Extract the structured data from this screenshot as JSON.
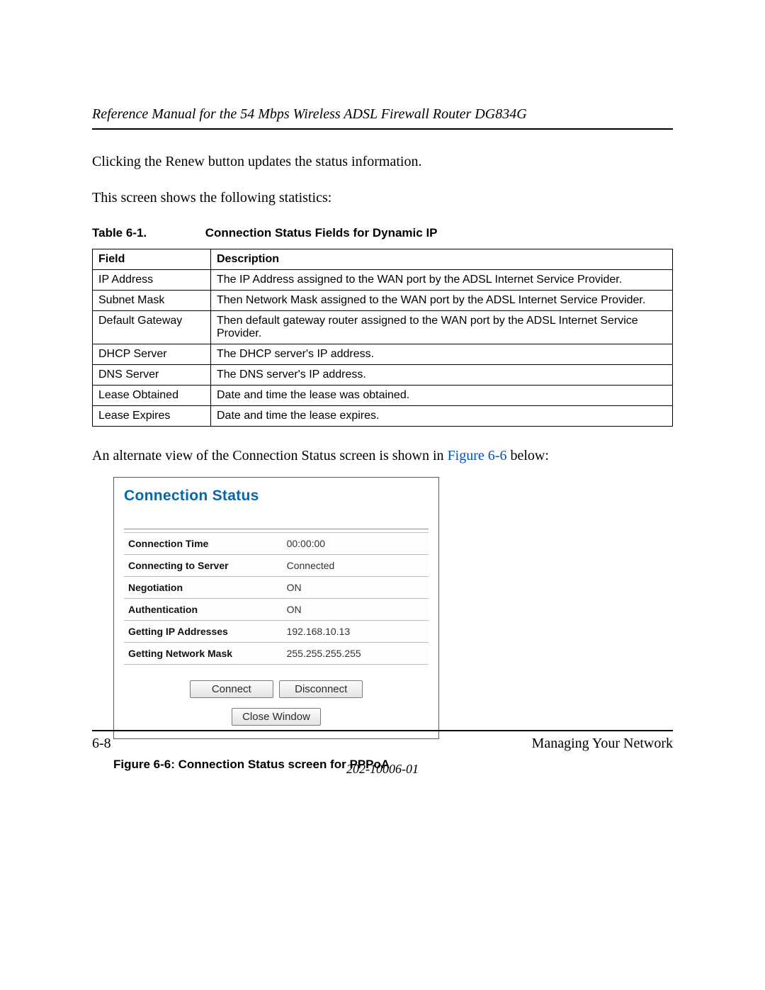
{
  "header": {
    "title": "Reference Manual for the 54 Mbps Wireless ADSL Firewall Router DG834G"
  },
  "body": {
    "para1": "Clicking the Renew button updates the status information.",
    "para2": "This screen shows the following statistics:",
    "para3_pre": "An alternate view of the Connection Status screen is shown in ",
    "para3_link": "Figure 6-6",
    "para3_post": " below:"
  },
  "table1": {
    "caption_label": "Table 6-1.",
    "caption_text": "Connection Status Fields for Dynamic IP",
    "columns": [
      "Field",
      "Description"
    ],
    "rows": [
      [
        "IP Address",
        "The IP Address assigned to the WAN port by the ADSL Internet Service Provider."
      ],
      [
        "Subnet Mask",
        "Then Network Mask assigned to the WAN port by the ADSL Internet Service Provider."
      ],
      [
        "Default Gateway",
        "Then default gateway router assigned to the WAN port by the ADSL Internet Service Provider."
      ],
      [
        "DHCP Server",
        "The DHCP server's IP address."
      ],
      [
        "DNS Server",
        "The DNS server's IP address."
      ],
      [
        "Lease Obtained",
        "Date and time the lease was obtained."
      ],
      [
        "Lease Expires",
        "Date and time the lease expires."
      ]
    ],
    "border_color": "#000000",
    "font_family": "Arial",
    "font_size_pt": 12
  },
  "figure": {
    "panel_title": "Connection Status",
    "title_color": "#0068b3",
    "rows": [
      {
        "k": "Connection Time",
        "v": "00:00:00"
      },
      {
        "k": "Connecting to Server",
        "v": "Connected"
      },
      {
        "k": "Negotiation",
        "v": "ON"
      },
      {
        "k": "Authentication",
        "v": "ON"
      },
      {
        "k": "Getting IP Addresses",
        "v": "192.168.10.13"
      },
      {
        "k": "Getting Network Mask",
        "v": "255.255.255.255"
      }
    ],
    "buttons": {
      "connect": "Connect",
      "disconnect": "Disconnect",
      "close": "Close Window"
    },
    "panel_border_color": "#5a5a5a",
    "row_border_color": "#bdbdbd",
    "button_bg_top": "#fdfdfd",
    "button_bg_bottom": "#e3e3e3",
    "caption": "Figure 6-6:  Connection Status screen for PPPoA"
  },
  "footer": {
    "page": "6-8",
    "section": "Managing Your Network",
    "docnum": "202-10006-01"
  },
  "link_color": "#0050c8"
}
